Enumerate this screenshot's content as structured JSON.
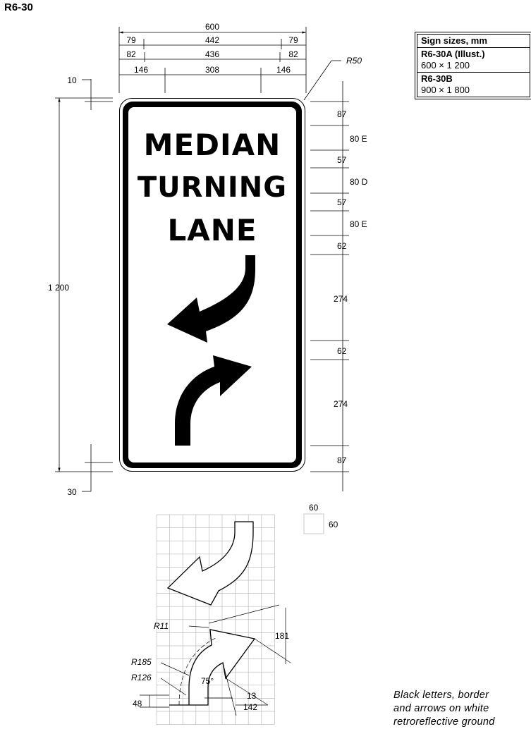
{
  "sign_code": "R6-30",
  "sizes_table": {
    "title": "Sign sizes, mm",
    "rows": [
      {
        "code": "R6-30A (Illust.)",
        "size": "600 × 1 200"
      },
      {
        "code": "R6-30B",
        "size": "900 × 1 800"
      }
    ]
  },
  "legend": {
    "line1": "MEDIAN",
    "line2": "TURNING",
    "line3": "LANE"
  },
  "dimensions": {
    "width_total": "600",
    "border_offsets": [
      "79",
      "442",
      "79"
    ],
    "inner_offsets": [
      "82",
      "436",
      "82"
    ],
    "text_offsets": [
      "146",
      "308",
      "146"
    ],
    "corner_radius": "R50",
    "height_total": "1 200",
    "top_margin": "10",
    "bottom_margin": "30",
    "vertical": [
      "87",
      "80 E",
      "57",
      "80 D",
      "57",
      "80 E",
      "62",
      "274",
      "62",
      "274",
      "87"
    ]
  },
  "grid_key": {
    "width": "60",
    "height": "60"
  },
  "arrow_detail": {
    "tip_radius": "R11",
    "outer_radius": "R185",
    "inner_radius": "R126",
    "angle": "75°",
    "head_length": "181",
    "shaft_width": "13",
    "head_width": "142",
    "bottom_offset": "48"
  },
  "note": {
    "line1": "Black letters, border",
    "line2": "and arrows on white",
    "line3": "retroreflective ground"
  }
}
